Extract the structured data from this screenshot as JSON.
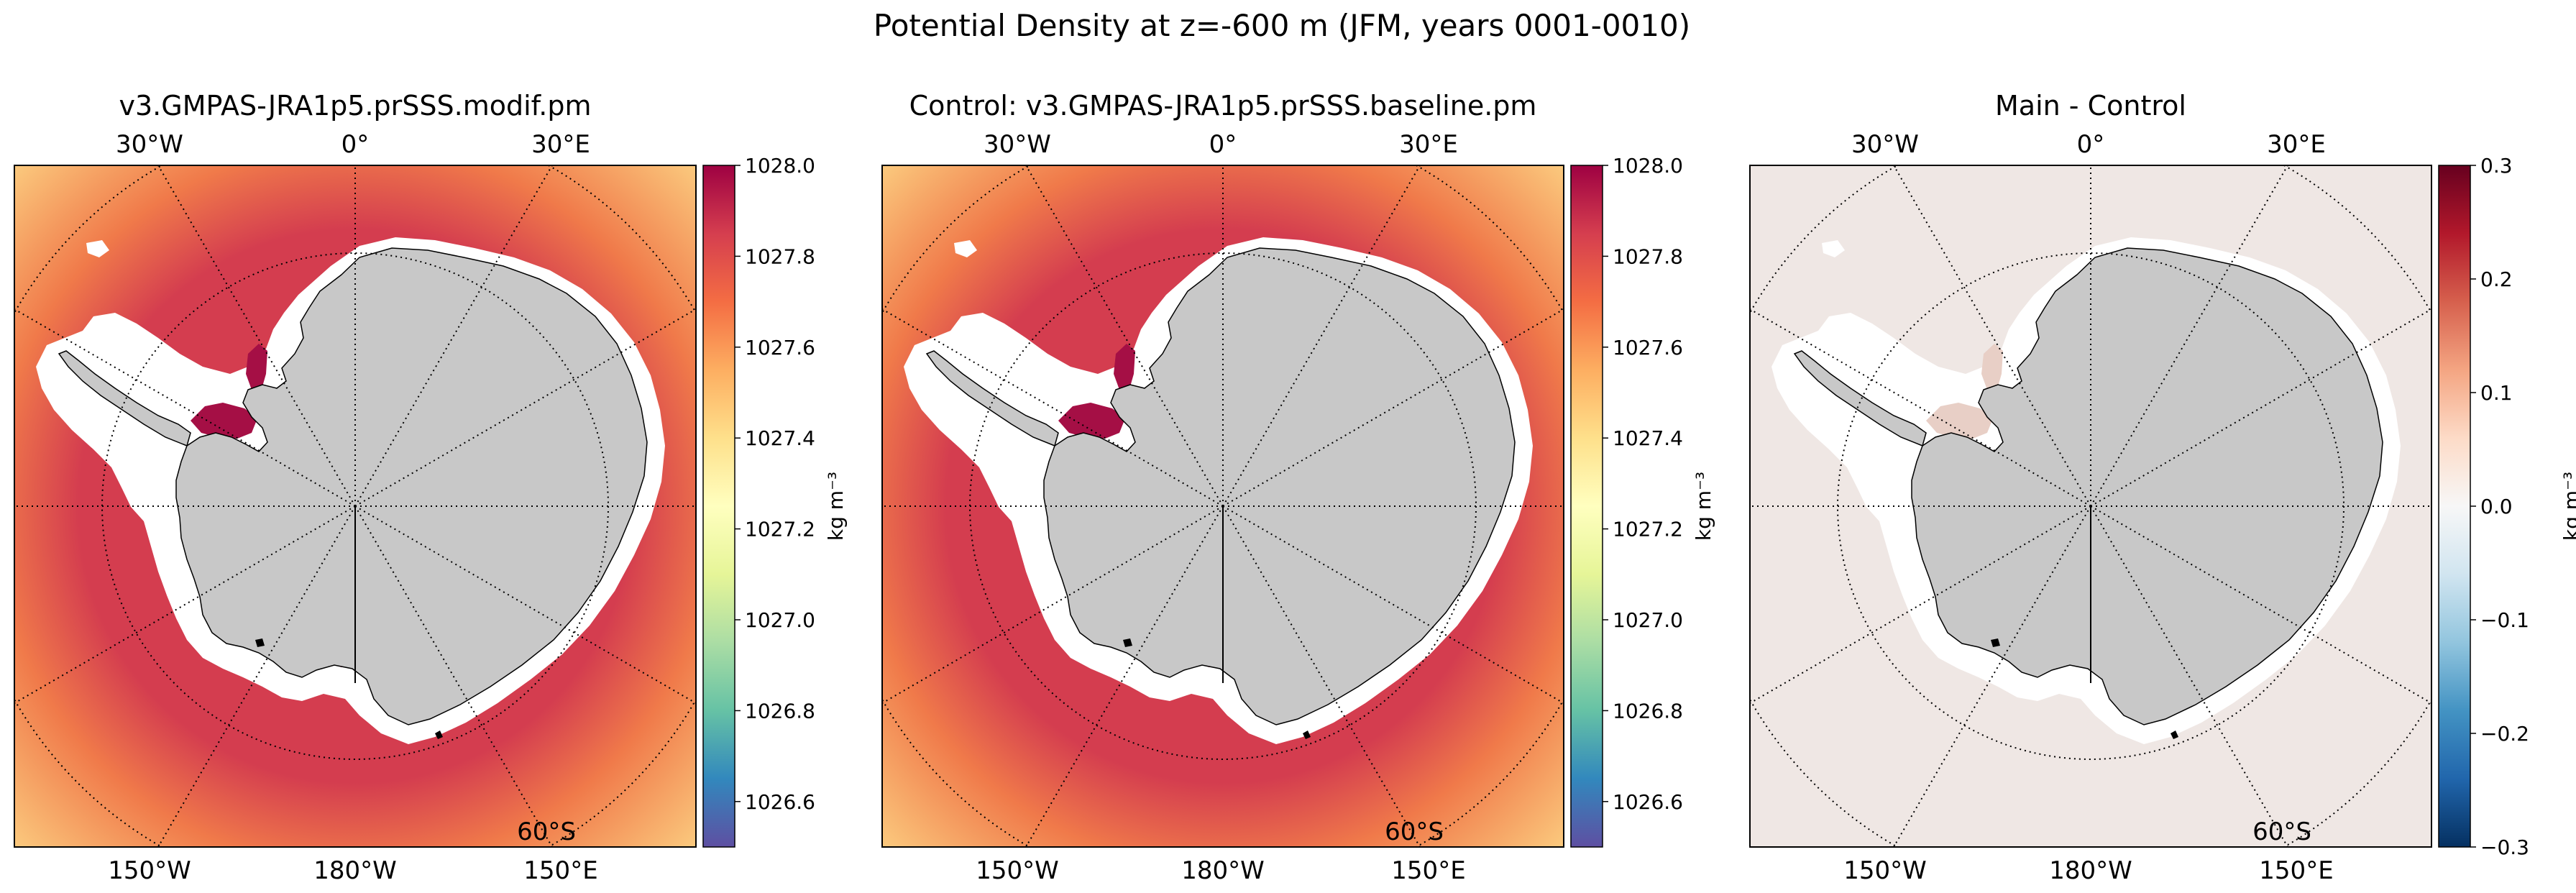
{
  "figure": {
    "title": "Potential Density at z=-600 m (JFM, years 0001-0010)"
  },
  "chart_data": [
    {
      "type": "heatmap",
      "title": "v3.GMPAS-JRA1p5.prSSS.modif.pm",
      "projection": "south polar stereographic",
      "lon_labels_top": [
        "30°W",
        "0°",
        "30°E"
      ],
      "lon_labels_bottom": [
        "150°W",
        "180°W",
        "150°E"
      ],
      "lat_label": "60°S",
      "colorbar": {
        "label": "kg m⁻³",
        "range": [
          1026.5,
          1028.0
        ],
        "ticks": [
          "1026.6",
          "1026.8",
          "1027.0",
          "1027.2",
          "1027.4",
          "1027.6",
          "1027.8",
          "1028.0"
        ],
        "colormap": [
          "#5e4fa2",
          "#3288bd",
          "#66c2a5",
          "#abdda4",
          "#e6f598",
          "#ffffbf",
          "#fee08b",
          "#fdae61",
          "#f46d43",
          "#d53e4f",
          "#9e0142"
        ]
      },
      "ocean_color": "#d43d4f",
      "rim_color": "#f07a4a",
      "outer_corner_color": "#fdd887",
      "shelf_color": "#a50f45"
    },
    {
      "type": "heatmap",
      "title": "Control: v3.GMPAS-JRA1p5.prSSS.baseline.pm",
      "projection": "south polar stereographic",
      "lon_labels_top": [
        "30°W",
        "0°",
        "30°E"
      ],
      "lon_labels_bottom": [
        "150°W",
        "180°W",
        "150°E"
      ],
      "lat_label": "60°S",
      "colorbar": {
        "label": "kg m⁻³",
        "range": [
          1026.5,
          1028.0
        ],
        "ticks": [
          "1026.6",
          "1026.8",
          "1027.0",
          "1027.2",
          "1027.4",
          "1027.6",
          "1027.8",
          "1028.0"
        ],
        "colormap": [
          "#5e4fa2",
          "#3288bd",
          "#66c2a5",
          "#abdda4",
          "#e6f598",
          "#ffffbf",
          "#fee08b",
          "#fdae61",
          "#f46d43",
          "#d53e4f",
          "#9e0142"
        ]
      },
      "ocean_color": "#d43d4f",
      "rim_color": "#f07a4a",
      "outer_corner_color": "#fdd887",
      "shelf_color": "#a50f45"
    },
    {
      "type": "heatmap",
      "title": "Main - Control",
      "projection": "south polar stereographic",
      "lon_labels_top": [
        "30°W",
        "0°",
        "30°E"
      ],
      "lon_labels_bottom": [
        "150°W",
        "180°W",
        "150°E"
      ],
      "lat_label": "60°S",
      "colorbar": {
        "label": "kg m⁻³",
        "range": [
          -0.3,
          0.3
        ],
        "ticks": [
          "−0.3",
          "−0.2",
          "−0.1",
          "0.0",
          "0.1",
          "0.2",
          "0.3"
        ],
        "colormap": [
          "#053061",
          "#2166ac",
          "#4393c3",
          "#92c5de",
          "#d1e5f0",
          "#f7f7f7",
          "#fddbc7",
          "#f4a582",
          "#d6604d",
          "#b2182b",
          "#67001f"
        ]
      },
      "ocean_color": "#efe7e4",
      "rim_color": "#efe7e4",
      "outer_corner_color": "#efe7e4",
      "shelf_color": "#e8cfc6"
    }
  ]
}
